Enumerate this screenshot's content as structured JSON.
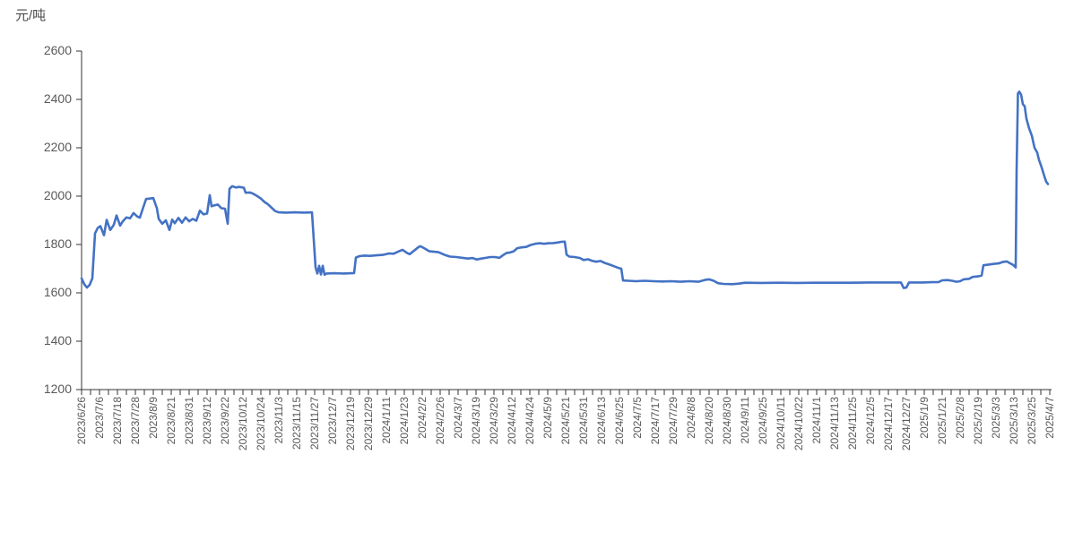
{
  "chart_data": {
    "type": "line",
    "unit_label": "元/吨",
    "ylim": [
      1200,
      2600
    ],
    "y_ticks": [
      2600,
      2400,
      2200,
      2000,
      1800,
      1600,
      1400,
      1200
    ],
    "grid": "off",
    "legend": "none",
    "axis_color": "#333333",
    "label_color": "#595959",
    "line_color": "#4472C4",
    "x_labels": [
      "2023/6/26",
      "2023/7/6",
      "2023/7/18",
      "2023/7/28",
      "2023/8/9",
      "2023/8/21",
      "2023/8/31",
      "2023/9/12",
      "2023/9/22",
      "2023/10/12",
      "2023/10/24",
      "2023/11/3",
      "2023/11/15",
      "2023/11/27",
      "2023/12/7",
      "2023/12/19",
      "2023/12/29",
      "2024/1/11",
      "2024/1/23",
      "2024/2/2",
      "2024/2/26",
      "2024/3/7",
      "2024/3/19",
      "2024/3/29",
      "2024/4/12",
      "2024/4/24",
      "2024/5/9",
      "2024/5/21",
      "2024/5/31",
      "2024/6/13",
      "2024/6/25",
      "2024/7/5",
      "2024/7/17",
      "2024/7/29",
      "2024/8/8",
      "2024/8/20",
      "2024/8/30",
      "2024/9/11",
      "2024/9/25",
      "2024/10/11",
      "2024/10/22",
      "2024/11/1",
      "2024/11/13",
      "2024/11/25",
      "2024/12/5",
      "2024/12/17",
      "2024/12/27",
      "2025/1/9",
      "2025/1/21",
      "2025/2/8",
      "2025/2/19",
      "2025/3/3",
      "2025/3/13",
      "2025/3/25",
      "2025/4/7"
    ],
    "minor_ticks_between_labels": 1,
    "series": [
      {
        "points": [
          [
            0,
            1660
          ],
          [
            0.3,
            1636
          ],
          [
            0.6,
            1622
          ],
          [
            0.9,
            1633
          ],
          [
            1.2,
            1660
          ],
          [
            1.5,
            1846
          ],
          [
            1.8,
            1868
          ],
          [
            2.1,
            1876
          ],
          [
            2.5,
            1838
          ],
          [
            2.8,
            1902
          ],
          [
            3.2,
            1860
          ],
          [
            3.6,
            1882
          ],
          [
            3.9,
            1920
          ],
          [
            4.3,
            1878
          ],
          [
            4.6,
            1896
          ],
          [
            5,
            1912
          ],
          [
            5.4,
            1908
          ],
          [
            5.8,
            1930
          ],
          [
            6.2,
            1916
          ],
          [
            6.5,
            1911
          ],
          [
            6.9,
            1956
          ],
          [
            7.2,
            1988
          ],
          [
            8,
            1992
          ],
          [
            8.4,
            1950
          ],
          [
            8.6,
            1906
          ],
          [
            9,
            1886
          ],
          [
            9.4,
            1900
          ],
          [
            9.8,
            1860
          ],
          [
            10.1,
            1903
          ],
          [
            10.4,
            1888
          ],
          [
            10.8,
            1910
          ],
          [
            11.2,
            1890
          ],
          [
            11.6,
            1912
          ],
          [
            12,
            1896
          ],
          [
            12.4,
            1906
          ],
          [
            12.8,
            1898
          ],
          [
            13.2,
            1940
          ],
          [
            13.6,
            1925
          ],
          [
            14,
            1928
          ],
          [
            14.3,
            2004
          ],
          [
            14.5,
            1958
          ],
          [
            14.8,
            1962
          ],
          [
            15.2,
            1965
          ],
          [
            15.6,
            1950
          ],
          [
            16,
            1948
          ],
          [
            16.3,
            1886
          ],
          [
            16.5,
            2030
          ],
          [
            16.8,
            2041
          ],
          [
            17.2,
            2036
          ],
          [
            17.6,
            2038
          ],
          [
            18.1,
            2035
          ],
          [
            18.3,
            2014
          ],
          [
            18.8,
            2015
          ],
          [
            19.2,
            2009
          ],
          [
            19.6,
            2000
          ],
          [
            20,
            1990
          ],
          [
            20.4,
            1976
          ],
          [
            20.8,
            1966
          ],
          [
            21.2,
            1952
          ],
          [
            21.6,
            1938
          ],
          [
            22,
            1933
          ],
          [
            22.8,
            1932
          ],
          [
            23.8,
            1933
          ],
          [
            24.8,
            1932
          ],
          [
            25.7,
            1933
          ],
          [
            25.9,
            1820
          ],
          [
            26.1,
            1705
          ],
          [
            26.3,
            1680
          ],
          [
            26.5,
            1712
          ],
          [
            26.7,
            1676
          ],
          [
            26.9,
            1712
          ],
          [
            27.1,
            1675
          ],
          [
            27.3,
            1680
          ],
          [
            28.2,
            1681
          ],
          [
            29.2,
            1680
          ],
          [
            30.4,
            1682
          ],
          [
            30.6,
            1746
          ],
          [
            31,
            1752
          ],
          [
            31.5,
            1754
          ],
          [
            32.2,
            1753
          ],
          [
            32.9,
            1755
          ],
          [
            33.6,
            1757
          ],
          [
            34.3,
            1763
          ],
          [
            34.8,
            1762
          ],
          [
            35.4,
            1772
          ],
          [
            35.8,
            1778
          ],
          [
            36.3,
            1765
          ],
          [
            36.6,
            1760
          ],
          [
            37.1,
            1775
          ],
          [
            37.6,
            1790
          ],
          [
            37.8,
            1793
          ],
          [
            38.3,
            1783
          ],
          [
            38.8,
            1772
          ],
          [
            39.3,
            1770
          ],
          [
            39.8,
            1768
          ],
          [
            40.5,
            1757
          ],
          [
            41.1,
            1750
          ],
          [
            41.8,
            1748
          ],
          [
            42.5,
            1745
          ],
          [
            43.1,
            1742
          ],
          [
            43.6,
            1744
          ],
          [
            44.1,
            1738
          ],
          [
            44.6,
            1742
          ],
          [
            45.1,
            1745
          ],
          [
            45.6,
            1748
          ],
          [
            46.1,
            1748
          ],
          [
            46.6,
            1745
          ],
          [
            47,
            1755
          ],
          [
            47.4,
            1765
          ],
          [
            47.8,
            1767
          ],
          [
            48.2,
            1772
          ],
          [
            48.6,
            1785
          ],
          [
            49.1,
            1788
          ],
          [
            49.6,
            1790
          ],
          [
            50.1,
            1798
          ],
          [
            50.6,
            1803
          ],
          [
            51.1,
            1805
          ],
          [
            51.6,
            1803
          ],
          [
            52.1,
            1805
          ],
          [
            52.6,
            1806
          ],
          [
            53.1,
            1808
          ],
          [
            53.5,
            1811
          ],
          [
            53.9,
            1812
          ],
          [
            54.1,
            1758
          ],
          [
            54.4,
            1750
          ],
          [
            55,
            1748
          ],
          [
            55.6,
            1744
          ],
          [
            56,
            1736
          ],
          [
            56.5,
            1739
          ],
          [
            56.9,
            1733
          ],
          [
            57.4,
            1729
          ],
          [
            57.9,
            1732
          ],
          [
            58.4,
            1723
          ],
          [
            58.9,
            1717
          ],
          [
            59.4,
            1710
          ],
          [
            59.9,
            1703
          ],
          [
            60.2,
            1700
          ],
          [
            60.4,
            1651
          ],
          [
            61,
            1650
          ],
          [
            61.8,
            1648
          ],
          [
            62.8,
            1650
          ],
          [
            63.8,
            1648
          ],
          [
            64.8,
            1647
          ],
          [
            65.8,
            1648
          ],
          [
            66.8,
            1646
          ],
          [
            67.8,
            1648
          ],
          [
            68.8,
            1646
          ],
          [
            69.6,
            1654
          ],
          [
            70,
            1656
          ],
          [
            70.5,
            1650
          ],
          [
            71,
            1640
          ],
          [
            71.6,
            1637
          ],
          [
            72.6,
            1636
          ],
          [
            73.3,
            1638
          ],
          [
            74,
            1642
          ],
          [
            75.8,
            1641
          ],
          [
            77.8,
            1642
          ],
          [
            79.8,
            1641
          ],
          [
            81.8,
            1642
          ],
          [
            83.8,
            1642
          ],
          [
            85.8,
            1642
          ],
          [
            87.8,
            1643
          ],
          [
            89.8,
            1643
          ],
          [
            91.4,
            1643
          ],
          [
            91.7,
            1620
          ],
          [
            92,
            1622
          ],
          [
            92.3,
            1643
          ],
          [
            93.8,
            1643
          ],
          [
            94.8,
            1644
          ],
          [
            95.6,
            1645
          ],
          [
            96,
            1652
          ],
          [
            96.6,
            1653
          ],
          [
            97.1,
            1650
          ],
          [
            97.6,
            1646
          ],
          [
            98,
            1648
          ],
          [
            98.4,
            1656
          ],
          [
            99,
            1658
          ],
          [
            99.4,
            1666
          ],
          [
            100,
            1668
          ],
          [
            100.4,
            1672
          ],
          [
            100.6,
            1714
          ],
          [
            101,
            1716
          ],
          [
            101.8,
            1720
          ],
          [
            102.3,
            1722
          ],
          [
            102.8,
            1728
          ],
          [
            103.2,
            1730
          ],
          [
            103.6,
            1722
          ],
          [
            103.9,
            1716
          ],
          [
            104.2,
            1705
          ],
          [
            104.3,
            2100
          ],
          [
            104.45,
            2425
          ],
          [
            104.6,
            2432
          ],
          [
            104.8,
            2420
          ],
          [
            105,
            2380
          ],
          [
            105.2,
            2372
          ],
          [
            105.4,
            2320
          ],
          [
            105.7,
            2280
          ],
          [
            106,
            2250
          ],
          [
            106.3,
            2200
          ],
          [
            106.6,
            2180
          ],
          [
            106.8,
            2150
          ],
          [
            107.1,
            2118
          ],
          [
            107.4,
            2082
          ],
          [
            107.6,
            2060
          ],
          [
            107.8,
            2050
          ]
        ]
      }
    ]
  }
}
